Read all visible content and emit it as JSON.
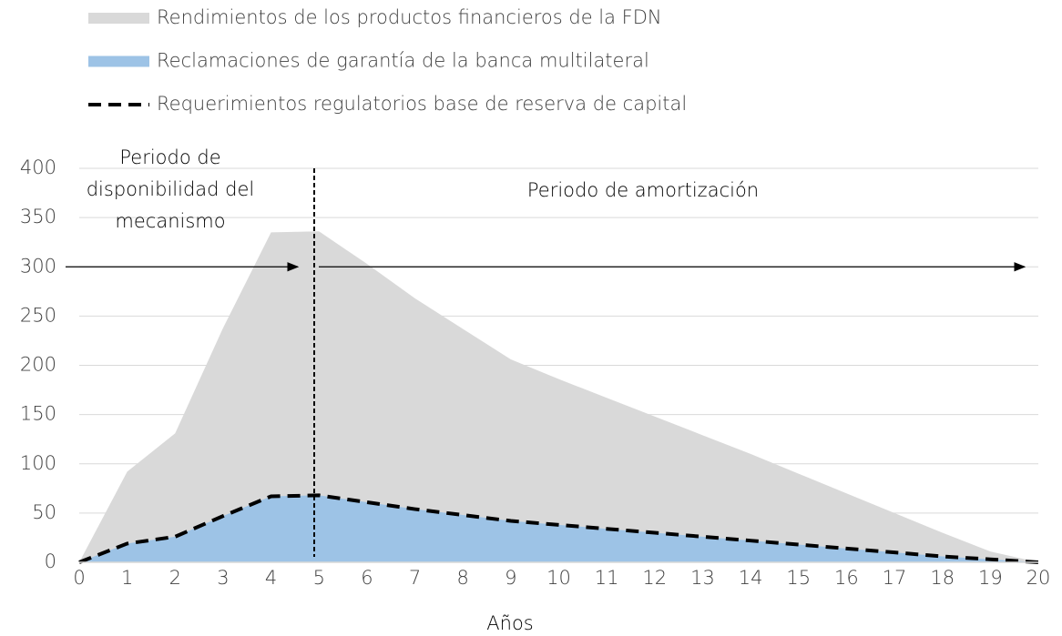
{
  "chart_data": {
    "type": "area",
    "x": [
      0,
      1,
      2,
      3,
      4,
      5,
      6,
      7,
      8,
      9,
      10,
      11,
      12,
      13,
      14,
      15,
      16,
      17,
      18,
      19,
      20
    ],
    "series": [
      {
        "name": "Rendimientos de los productos financieros de la FDN",
        "color": "#d9d9d9",
        "style": "area",
        "values": [
          0,
          92,
          131,
          238,
          335,
          336,
          303,
          268,
          237,
          206,
          186,
          167,
          148,
          129,
          110,
          90,
          70,
          50,
          30,
          11,
          0
        ]
      },
      {
        "name": "Reclamaciones de garantía de la banca multilateral",
        "color": "#9dc3e6",
        "style": "area",
        "values": [
          0,
          19,
          26,
          47,
          67,
          68,
          61,
          54,
          48,
          42,
          38,
          34,
          30,
          26,
          22,
          18,
          14,
          10,
          6,
          3,
          0
        ]
      },
      {
        "name": "Requerimientos regulatorios base de reserva de capital",
        "color": "#000000",
        "style": "dashed-line",
        "values": [
          0,
          19,
          26,
          47,
          67,
          68,
          61,
          54,
          48,
          42,
          38,
          34,
          30,
          26,
          22,
          18,
          14,
          10,
          6,
          3,
          0
        ]
      }
    ],
    "xlabel": "Años",
    "xlim": [
      0,
      20
    ],
    "xticks": [
      0,
      1,
      2,
      3,
      4,
      5,
      6,
      7,
      8,
      9,
      10,
      11,
      12,
      13,
      14,
      15,
      16,
      17,
      18,
      19,
      20
    ],
    "ylim": [
      0,
      400
    ],
    "yticks": [
      0,
      50,
      100,
      150,
      200,
      250,
      300,
      350,
      400
    ],
    "grid": true,
    "legend": "top",
    "period_boundary": 4.9,
    "annotations": {
      "availability": [
        "Periodo de",
        "disponibilidad del",
        "mecanismo"
      ],
      "amortization": "Periodo de amortización"
    }
  }
}
